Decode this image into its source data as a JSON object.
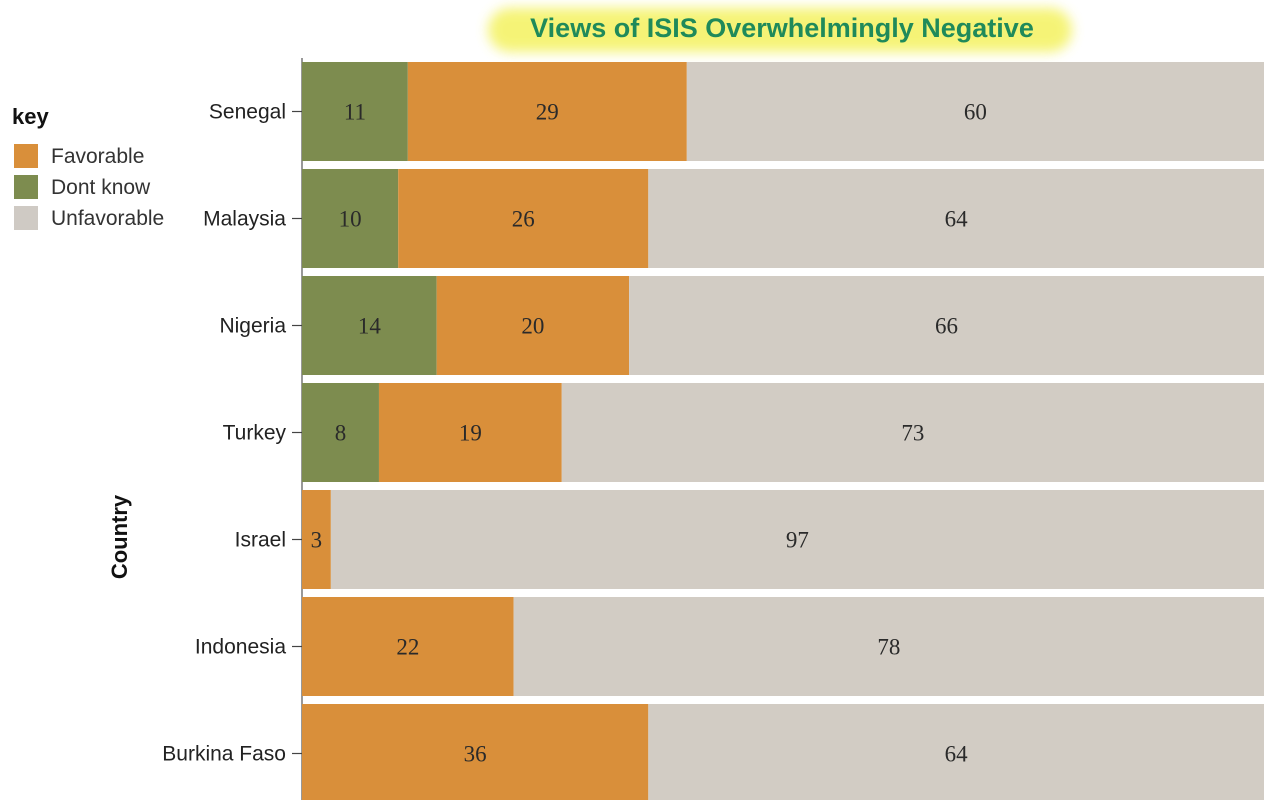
{
  "chart_data": {
    "type": "bar",
    "orientation": "horizontal",
    "stacked": true,
    "title": "Views of ISIS Overwhelmingly Negative",
    "ylabel": "Country",
    "xlabel": "",
    "categories": [
      "Senegal",
      "Malaysia",
      "Nigeria",
      "Turkey",
      "Israel",
      "Indonesia",
      "Burkina Faso"
    ],
    "series": [
      {
        "name": "Dont know",
        "color": "#7d8c4f",
        "values": [
          11,
          10,
          14,
          8,
          0,
          0,
          0
        ]
      },
      {
        "name": "Favorable",
        "color": "#d98f3a",
        "values": [
          29,
          26,
          20,
          19,
          3,
          22,
          36
        ]
      },
      {
        "name": "Unfavorable",
        "color": "#d2ccc4",
        "values": [
          60,
          64,
          66,
          73,
          97,
          78,
          64
        ]
      }
    ],
    "legend": {
      "title": "key",
      "position": "top-left",
      "entries": [
        {
          "label": "Favorable",
          "color": "#d98f3a"
        },
        {
          "label": "Dont know",
          "color": "#7d8c4f"
        },
        {
          "label": "Unfavorable",
          "color": "#cfcac4"
        }
      ]
    },
    "xlim": [
      0,
      100
    ],
    "grid": false
  }
}
